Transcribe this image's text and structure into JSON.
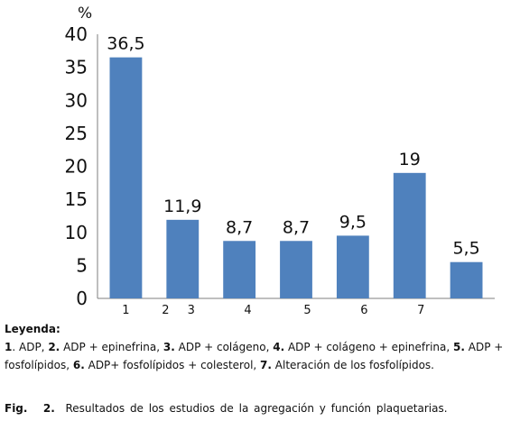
{
  "chart_data": {
    "type": "bar",
    "unit_label": "%",
    "categories": [
      "1",
      "2",
      "3",
      "4",
      "5",
      "6",
      "7"
    ],
    "x_tick_labels": [
      "1",
      "2",
      "3",
      "4",
      "5",
      "6",
      "7"
    ],
    "values": [
      36.5,
      11.9,
      8.7,
      8.7,
      9.5,
      19,
      5.5
    ],
    "data_labels": [
      "36,5",
      "11,9",
      "8,7",
      "8,7",
      "9,5",
      "19",
      "5,5"
    ],
    "y_ticks": [
      0,
      5,
      10,
      15,
      20,
      25,
      30,
      35,
      40
    ],
    "ylim": [
      0,
      40
    ],
    "bar_color": "#4f81bd",
    "grid": false,
    "title": "",
    "xlabel": "",
    "ylabel": ""
  },
  "legend": {
    "title": "Leyenda:",
    "items": [
      {
        "num": "1",
        "text": "ADP,"
      },
      {
        "num": "2.",
        "text": "ADP + epinefrina,"
      },
      {
        "num": "3.",
        "text": "ADP + colágeno,"
      },
      {
        "num": "4.",
        "text": "ADP + colágeno + epinefrina,"
      },
      {
        "num": "5.",
        "text": "ADP + fosfolípidos,"
      },
      {
        "num": "6.",
        "text": "ADP+ fosfolípidos + colesterol,"
      },
      {
        "num": "7.",
        "text": "Alteración de los fosfolípidos."
      }
    ]
  },
  "caption": {
    "label": "Fig.",
    "number": "2.",
    "text": "Resultados de los estudios de la agregación y función plaquetarias."
  }
}
